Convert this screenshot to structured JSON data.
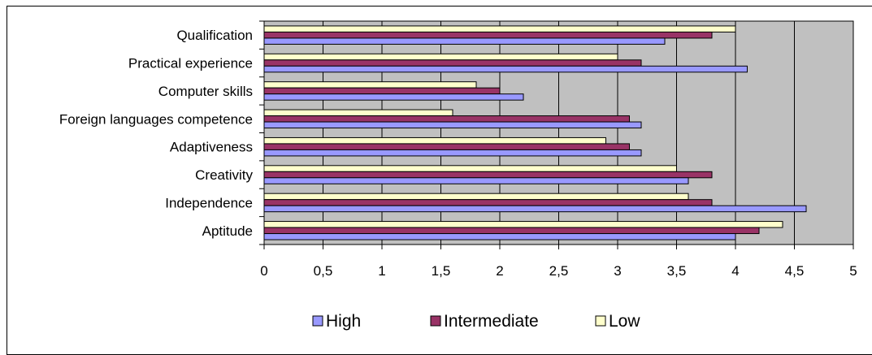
{
  "chart_data": {
    "type": "bar",
    "orientation": "horizontal",
    "title": "",
    "xlabel": "",
    "ylabel": "",
    "categories": [
      "Qualification",
      "Practical experience",
      "Computer skills",
      "Foreign languages competence",
      "Adaptiveness",
      "Creativity",
      "Independence",
      "Aptitude"
    ],
    "series": [
      {
        "name": "High",
        "color": "#9999FF",
        "values": [
          3.4,
          4.1,
          2.2,
          3.2,
          3.2,
          3.6,
          4.6,
          4.0
        ]
      },
      {
        "name": "Intermediate",
        "color": "#993366",
        "values": [
          3.8,
          3.2,
          2.0,
          3.1,
          3.1,
          3.8,
          3.8,
          4.2
        ]
      },
      {
        "name": "Low",
        "color": "#FFFFCC",
        "values": [
          4.0,
          3.0,
          1.8,
          1.6,
          2.9,
          3.5,
          3.6,
          4.4
        ]
      }
    ],
    "xlim": [
      0,
      5
    ],
    "xticks": [
      0,
      0.5,
      1,
      1.5,
      2,
      2.5,
      3,
      3.5,
      4,
      4.5,
      5
    ],
    "xtick_labels": [
      "0",
      "0,5",
      "1",
      "1,5",
      "2",
      "2,5",
      "3",
      "3,5",
      "4",
      "4,5",
      "5"
    ],
    "grid": true,
    "plot_background": "#C0C0C0",
    "legend_position": "bottom"
  }
}
